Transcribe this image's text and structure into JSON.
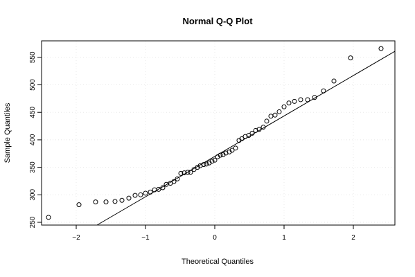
{
  "chart_data": {
    "type": "scatter",
    "title": "Normal Q-Q Plot",
    "xlabel": "Theoretical Quantiles",
    "ylabel": "Sample Quantiles",
    "xlim": [
      -2.5,
      2.6
    ],
    "ylim": [
      245,
      580
    ],
    "x_ticks": [
      -2,
      -1,
      0,
      1,
      2
    ],
    "x_tick_labels": [
      "−2",
      "−1",
      "0",
      "1",
      "2"
    ],
    "y_ticks": [
      250,
      300,
      350,
      400,
      450,
      500,
      550
    ],
    "y_tick_labels": [
      "250",
      "300",
      "350",
      "400",
      "450",
      "500",
      "550"
    ],
    "grid": true,
    "legend": "none",
    "marker": "open-circle",
    "reference_line": {
      "x": [
        -1.7,
        2.6
      ],
      "y": [
        245,
        561
      ]
    },
    "points": {
      "x": [
        -2.4,
        -1.96,
        -1.72,
        -1.57,
        -1.44,
        -1.34,
        -1.24,
        -1.15,
        -1.07,
        -1.0,
        -0.93,
        -0.87,
        -0.81,
        -0.75,
        -0.7,
        -0.64,
        -0.59,
        -0.54,
        -0.49,
        -0.44,
        -0.39,
        -0.35,
        -0.3,
        -0.25,
        -0.21,
        -0.16,
        -0.12,
        -0.08,
        -0.04,
        0.0,
        0.04,
        0.08,
        0.12,
        0.16,
        0.21,
        0.25,
        0.3,
        0.35,
        0.39,
        0.44,
        0.49,
        0.54,
        0.59,
        0.64,
        0.7,
        0.75,
        0.81,
        0.87,
        0.93,
        1.0,
        1.07,
        1.15,
        1.24,
        1.34,
        1.44,
        1.57,
        1.72,
        1.96,
        2.4
      ],
      "y": [
        259,
        282,
        287,
        287,
        288,
        290,
        294,
        299,
        300,
        303,
        305,
        309,
        310,
        313,
        319,
        321,
        324,
        329,
        339,
        340,
        341,
        341,
        346,
        350,
        353,
        355,
        356,
        358,
        361,
        363,
        369,
        372,
        373,
        376,
        378,
        381,
        385,
        399,
        402,
        406,
        408,
        412,
        417,
        419,
        423,
        434,
        443,
        445,
        451,
        460,
        467,
        470,
        473,
        473,
        477,
        489,
        507,
        549,
        566
      ]
    }
  }
}
